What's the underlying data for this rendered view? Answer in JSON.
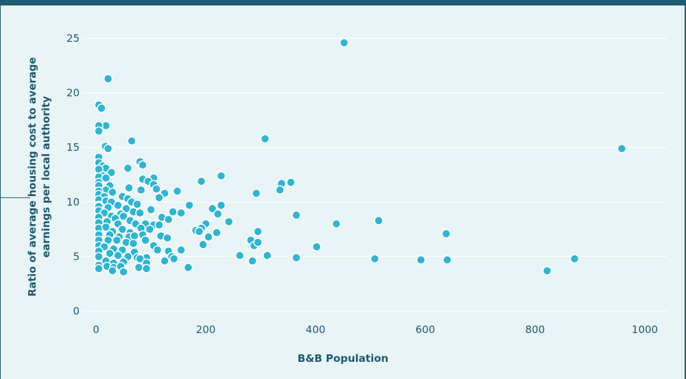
{
  "chart_data": {
    "type": "scatter",
    "title": "",
    "xlabel": "B&B Population",
    "ylabel_lines": [
      "Ratio of average housing cost to average",
      "earnings per local authority"
    ],
    "xlim": [
      0,
      1000
    ],
    "ylim": [
      0,
      25
    ],
    "xticks": [
      0,
      200,
      400,
      600,
      800,
      1000
    ],
    "yticks": [
      0,
      5,
      10,
      15,
      20,
      25
    ],
    "grid": "horizontal",
    "legend": "none",
    "colors": {
      "point": "#2db5d3",
      "text": "#1b5a6e",
      "frame": "#1d5c72",
      "background": "#e9f4f7"
    },
    "points": [
      [
        452,
        24.6
      ],
      [
        22,
        21.3
      ],
      [
        5,
        18.9
      ],
      [
        10,
        18.6
      ],
      [
        18,
        17.0
      ],
      [
        5,
        17.0
      ],
      [
        5,
        16.5
      ],
      [
        65,
        15.6
      ],
      [
        308,
        15.8
      ],
      [
        17,
        15.1
      ],
      [
        22,
        14.9
      ],
      [
        958,
        14.9
      ],
      [
        5,
        14.1
      ],
      [
        80,
        13.7
      ],
      [
        85,
        13.4
      ],
      [
        5,
        13.6
      ],
      [
        12,
        13.3
      ],
      [
        18,
        13.1
      ],
      [
        58,
        13.1
      ],
      [
        5,
        13.0
      ],
      [
        28,
        12.7
      ],
      [
        12,
        12.4
      ],
      [
        5,
        12.3
      ],
      [
        18,
        12.2
      ],
      [
        5,
        11.8
      ],
      [
        105,
        12.2
      ],
      [
        85,
        12.1
      ],
      [
        95,
        11.9
      ],
      [
        192,
        11.9
      ],
      [
        228,
        12.4
      ],
      [
        338,
        11.7
      ],
      [
        355,
        11.8
      ],
      [
        5,
        11.5
      ],
      [
        25,
        11.5
      ],
      [
        105,
        11.6
      ],
      [
        60,
        11.3
      ],
      [
        18,
        11.1
      ],
      [
        110,
        11.2
      ],
      [
        82,
        11.1
      ],
      [
        5,
        11.0
      ],
      [
        30,
        10.9
      ],
      [
        125,
        10.8
      ],
      [
        148,
        11.0
      ],
      [
        335,
        11.1
      ],
      [
        292,
        10.8
      ],
      [
        5,
        10.7
      ],
      [
        15,
        10.5
      ],
      [
        48,
        10.5
      ],
      [
        58,
        10.3
      ],
      [
        115,
        10.4
      ],
      [
        5,
        10.2
      ],
      [
        18,
        10.1
      ],
      [
        28,
        10.0
      ],
      [
        65,
        10.0
      ],
      [
        75,
        9.8
      ],
      [
        5,
        9.7
      ],
      [
        40,
        9.7
      ],
      [
        5,
        9.6
      ],
      [
        22,
        9.5
      ],
      [
        55,
        9.4
      ],
      [
        100,
        9.3
      ],
      [
        170,
        9.7
      ],
      [
        212,
        9.4
      ],
      [
        228,
        9.7
      ],
      [
        5,
        9.2
      ],
      [
        15,
        9.0
      ],
      [
        45,
        8.9
      ],
      [
        68,
        9.1
      ],
      [
        80,
        9.0
      ],
      [
        140,
        9.1
      ],
      [
        155,
        9.0
      ],
      [
        222,
        8.9
      ],
      [
        5,
        8.6
      ],
      [
        28,
        8.7
      ],
      [
        35,
        8.5
      ],
      [
        50,
        8.7
      ],
      [
        62,
        8.3
      ],
      [
        120,
        8.6
      ],
      [
        132,
        8.4
      ],
      [
        105,
        7.9
      ],
      [
        365,
        8.8
      ],
      [
        5,
        8.1
      ],
      [
        20,
        8.2
      ],
      [
        40,
        8.0
      ],
      [
        72,
        8.0
      ],
      [
        90,
        8.0
      ],
      [
        115,
        7.9
      ],
      [
        200,
        8.0
      ],
      [
        242,
        8.2
      ],
      [
        438,
        8.0
      ],
      [
        515,
        8.3
      ],
      [
        5,
        7.6
      ],
      [
        18,
        7.7
      ],
      [
        30,
        7.3
      ],
      [
        48,
        7.5
      ],
      [
        62,
        7.2
      ],
      [
        82,
        7.6
      ],
      [
        98,
        7.5
      ],
      [
        182,
        7.4
      ],
      [
        192,
        7.6
      ],
      [
        5,
        7.0
      ],
      [
        25,
        7.0
      ],
      [
        42,
        6.8
      ],
      [
        60,
        6.8
      ],
      [
        70,
        6.9
      ],
      [
        85,
        7.0
      ],
      [
        118,
        6.9
      ],
      [
        130,
        6.7
      ],
      [
        205,
        6.8
      ],
      [
        220,
        7.2
      ],
      [
        295,
        7.3
      ],
      [
        638,
        7.1
      ],
      [
        5,
        6.5
      ],
      [
        22,
        6.5
      ],
      [
        38,
        6.5
      ],
      [
        55,
        6.3
      ],
      [
        68,
        6.2
      ],
      [
        90,
        6.5
      ],
      [
        105,
        6.0
      ],
      [
        188,
        7.3
      ],
      [
        282,
        6.5
      ],
      [
        288,
        6.0
      ],
      [
        295,
        6.3
      ],
      [
        5,
        6.0
      ],
      [
        15,
        5.9
      ],
      [
        32,
        5.7
      ],
      [
        48,
        5.6
      ],
      [
        70,
        5.4
      ],
      [
        112,
        5.6
      ],
      [
        132,
        5.5
      ],
      [
        155,
        5.6
      ],
      [
        195,
        6.1
      ],
      [
        402,
        5.9
      ],
      [
        5,
        5.5
      ],
      [
        25,
        5.3
      ],
      [
        40,
        5.1
      ],
      [
        58,
        5.0
      ],
      [
        75,
        4.9
      ],
      [
        92,
        4.9
      ],
      [
        138,
        5.0
      ],
      [
        262,
        5.1
      ],
      [
        312,
        5.1
      ],
      [
        365,
        4.9
      ],
      [
        5,
        5.0
      ],
      [
        18,
        4.6
      ],
      [
        32,
        4.4
      ],
      [
        50,
        4.5
      ],
      [
        80,
        4.8
      ],
      [
        92,
        4.4
      ],
      [
        125,
        4.6
      ],
      [
        142,
        4.8
      ],
      [
        285,
        4.6
      ],
      [
        508,
        4.8
      ],
      [
        592,
        4.7
      ],
      [
        640,
        4.7
      ],
      [
        872,
        4.8
      ],
      [
        5,
        4.2
      ],
      [
        20,
        4.1
      ],
      [
        32,
        4.0
      ],
      [
        45,
        4.1
      ],
      [
        78,
        4.0
      ],
      [
        92,
        3.9
      ],
      [
        168,
        4.0
      ],
      [
        5,
        3.9
      ],
      [
        30,
        3.7
      ],
      [
        50,
        3.6
      ],
      [
        822,
        3.7
      ]
    ]
  }
}
